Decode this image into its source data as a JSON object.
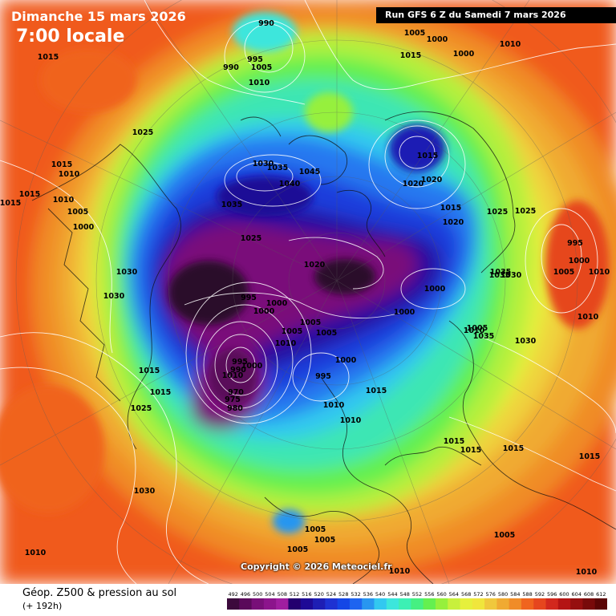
{
  "header": {
    "date": "Dimanche 15 mars 2026",
    "time": "7:00 locale",
    "run": "Run GFS 6 Z du Samedi 7 mars 2026"
  },
  "copyright": "Copyright © 2026 Meteociel.fr",
  "footer": {
    "title": "Géop. Z500 & pression au sol",
    "subtitle": "(+ 192h)"
  },
  "scale": {
    "labels": [
      "492",
      "496",
      "500",
      "504",
      "508",
      "512",
      "516",
      "520",
      "524",
      "528",
      "532",
      "536",
      "540",
      "544",
      "548",
      "552",
      "556",
      "560",
      "564",
      "568",
      "572",
      "576",
      "580",
      "584",
      "588",
      "592",
      "596",
      "600",
      "604",
      "608",
      "612"
    ],
    "colors": [
      "#3c0a3c",
      "#5a0a5a",
      "#780f78",
      "#8c148c",
      "#a01ea0",
      "#23006e",
      "#1e0a96",
      "#1e1eb4",
      "#1e32d2",
      "#1446e6",
      "#1e64f0",
      "#2896f0",
      "#32c8f0",
      "#3ce6dc",
      "#3cf0b4",
      "#46f082",
      "#64f050",
      "#96f03c",
      "#c8f03c",
      "#e6f03c",
      "#f0e63c",
      "#f0c83c",
      "#f0aa32",
      "#f08c28",
      "#f0641e",
      "#e6461e",
      "#d2281e",
      "#b41414",
      "#960f0f",
      "#780a0a",
      "#5a0505"
    ]
  },
  "pressure_labels": [
    {
      "text": "990"
    },
    {
      "text": "1005"
    },
    {
      "text": "1000"
    },
    {
      "text": "1015"
    },
    {
      "text": "1000"
    },
    {
      "text": "1010"
    },
    {
      "text": "1015"
    },
    {
      "text": "995"
    },
    {
      "text": "990"
    },
    {
      "text": "1005"
    },
    {
      "text": "1010"
    },
    {
      "text": "1025"
    },
    {
      "text": "1015"
    },
    {
      "text": "1010"
    },
    {
      "text": "1015"
    },
    {
      "text": "1010"
    },
    {
      "text": "1015"
    },
    {
      "text": "1005"
    },
    {
      "text": "1000"
    },
    {
      "text": "1030"
    },
    {
      "text": "1035"
    },
    {
      "text": "1045"
    },
    {
      "text": "1040"
    },
    {
      "text": "1035"
    },
    {
      "text": "1015"
    },
    {
      "text": "1020"
    },
    {
      "text": "1020"
    },
    {
      "text": "1015"
    },
    {
      "text": "1020"
    },
    {
      "text": "1025"
    },
    {
      "text": "1025"
    },
    {
      "text": "995"
    },
    {
      "text": "1000"
    },
    {
      "text": "1005"
    },
    {
      "text": "1010"
    },
    {
      "text": "1025"
    },
    {
      "text": "1020"
    },
    {
      "text": "1035"
    },
    {
      "text": "1035"
    },
    {
      "text": "1030"
    },
    {
      "text": "1030"
    },
    {
      "text": "1030"
    },
    {
      "text": "1000"
    },
    {
      "text": "995"
    },
    {
      "text": "1000"
    },
    {
      "text": "1000"
    },
    {
      "text": "1005"
    },
    {
      "text": "1010"
    },
    {
      "text": "1005"
    },
    {
      "text": "1005"
    },
    {
      "text": "1000"
    },
    {
      "text": "1010"
    },
    {
      "text": "1005"
    },
    {
      "text": "1035"
    },
    {
      "text": "1030"
    },
    {
      "text": "1010"
    },
    {
      "text": "1015"
    },
    {
      "text": "995"
    },
    {
      "text": "990"
    },
    {
      "text": "1000"
    },
    {
      "text": "995"
    },
    {
      "text": "1000"
    },
    {
      "text": "1010"
    },
    {
      "text": "1015"
    },
    {
      "text": "970"
    },
    {
      "text": "975"
    },
    {
      "text": "980"
    },
    {
      "text": "1010"
    },
    {
      "text": "1010"
    },
    {
      "text": "1015"
    },
    {
      "text": "1025"
    },
    {
      "text": "1015"
    },
    {
      "text": "1015"
    },
    {
      "text": "1015"
    },
    {
      "text": "1030"
    },
    {
      "text": "1005"
    },
    {
      "text": "1005"
    },
    {
      "text": "1005"
    },
    {
      "text": "1005"
    },
    {
      "text": "1010"
    },
    {
      "text": "1010"
    },
    {
      "text": "1010"
    },
    {
      "text": "1015"
    }
  ]
}
